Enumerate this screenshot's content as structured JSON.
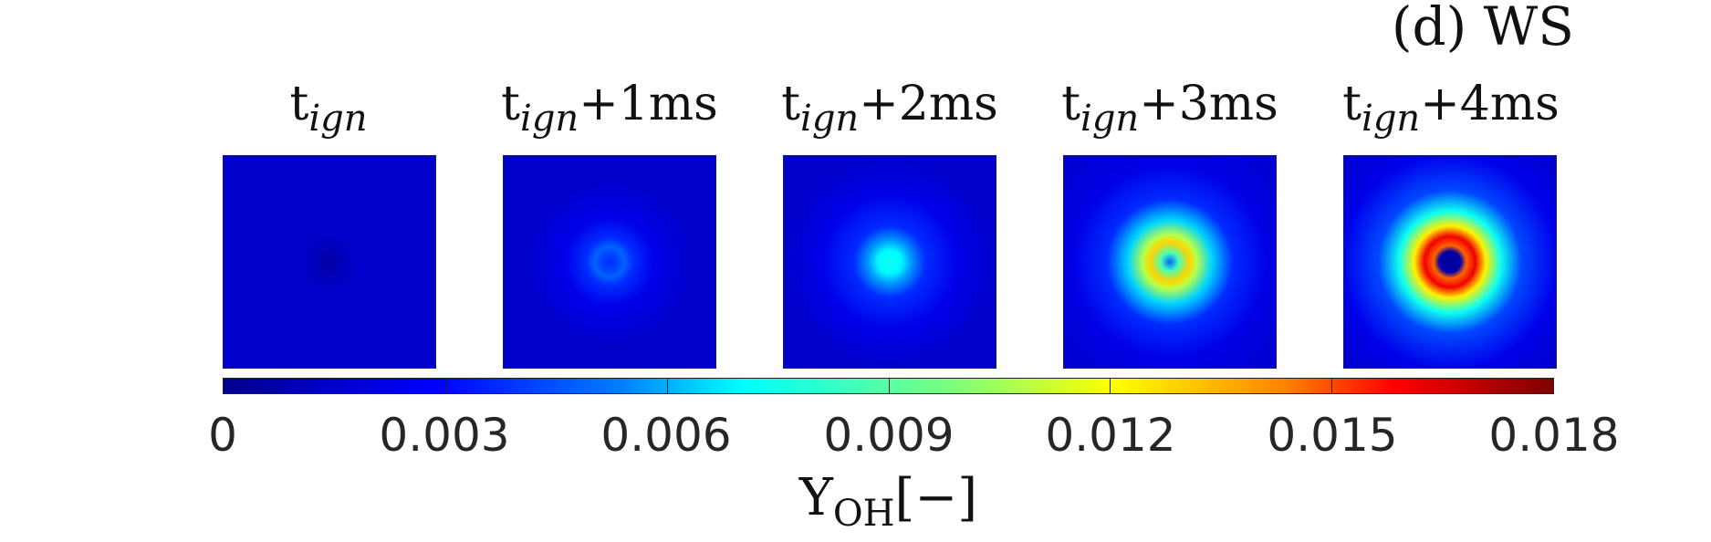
{
  "panel_label": "(d) WS",
  "frames": [
    {
      "base": "t",
      "sub": "ign",
      "suffix": "",
      "peak_yoh": 0.0
    },
    {
      "base": "t",
      "sub": "ign",
      "suffix": "+1ms",
      "peak_yoh": 0.004
    },
    {
      "base": "t",
      "sub": "ign",
      "suffix": "+2ms",
      "peak_yoh": 0.007
    },
    {
      "base": "t",
      "sub": "ign",
      "suffix": "+3ms",
      "peak_yoh": 0.012
    },
    {
      "base": "t",
      "sub": "ign",
      "suffix": "+4ms",
      "peak_yoh": 0.016
    }
  ],
  "colorbar": {
    "colormap": "jet",
    "range": [
      0,
      0.018
    ],
    "tick_values": [
      0,
      0.003,
      0.006,
      0.009,
      0.012,
      0.015,
      0.018
    ],
    "tick_labels": [
      "0",
      "0.003",
      "0.006",
      "0.009",
      "0.012",
      "0.015",
      "0.018"
    ],
    "label_main": "Y",
    "label_sub": "OH",
    "label_unit": "[−]"
  }
}
